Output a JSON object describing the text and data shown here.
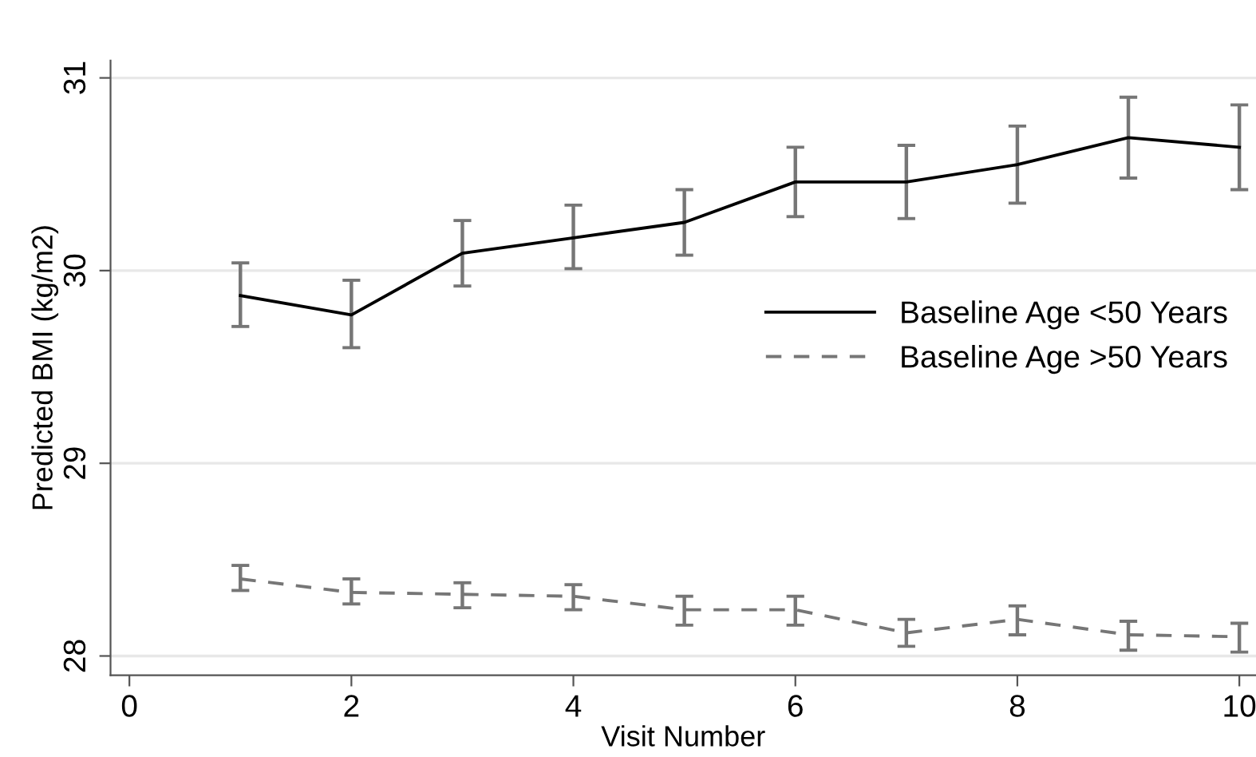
{
  "chart_data": {
    "type": "line",
    "xlabel": "Visit Number",
    "ylabel": "Predicted BMI (kg/m2)",
    "x": [
      1,
      2,
      3,
      4,
      5,
      6,
      7,
      8,
      9,
      10
    ],
    "series": [
      {
        "name": "Baseline Age <50 Years",
        "color": "#000000",
        "line_style": "solid",
        "values": [
          29.87,
          29.77,
          30.09,
          30.17,
          30.25,
          30.46,
          30.46,
          30.55,
          30.69,
          30.64
        ],
        "errors": [
          [
            29.71,
            30.04
          ],
          [
            29.6,
            29.95
          ],
          [
            29.92,
            30.26
          ],
          [
            30.01,
            30.34
          ],
          [
            30.08,
            30.42
          ],
          [
            30.28,
            30.64
          ],
          [
            30.27,
            30.65
          ],
          [
            30.35,
            30.75
          ],
          [
            30.48,
            30.9
          ],
          [
            30.42,
            30.86
          ]
        ]
      },
      {
        "name": "Baseline Age >50 Years",
        "color": "#767676",
        "line_style": "dashed",
        "values": [
          28.4,
          28.33,
          28.32,
          28.31,
          28.24,
          28.24,
          28.12,
          28.19,
          28.11,
          28.1
        ],
        "errors": [
          [
            28.34,
            28.47
          ],
          [
            28.27,
            28.4
          ],
          [
            28.25,
            28.38
          ],
          [
            28.24,
            28.37
          ],
          [
            28.16,
            28.31
          ],
          [
            28.16,
            28.31
          ],
          [
            28.05,
            28.19
          ],
          [
            28.11,
            28.26
          ],
          [
            28.03,
            28.18
          ],
          [
            28.02,
            28.17
          ]
        ]
      }
    ],
    "xlim": [
      -0.17,
      10.15
    ],
    "ylim": [
      27.9,
      31.09
    ],
    "xticks": [
      0,
      2,
      4,
      6,
      8,
      10
    ],
    "yticks": [
      28,
      29,
      30,
      31
    ],
    "grid": "y",
    "legend": "right",
    "marker": "none"
  }
}
